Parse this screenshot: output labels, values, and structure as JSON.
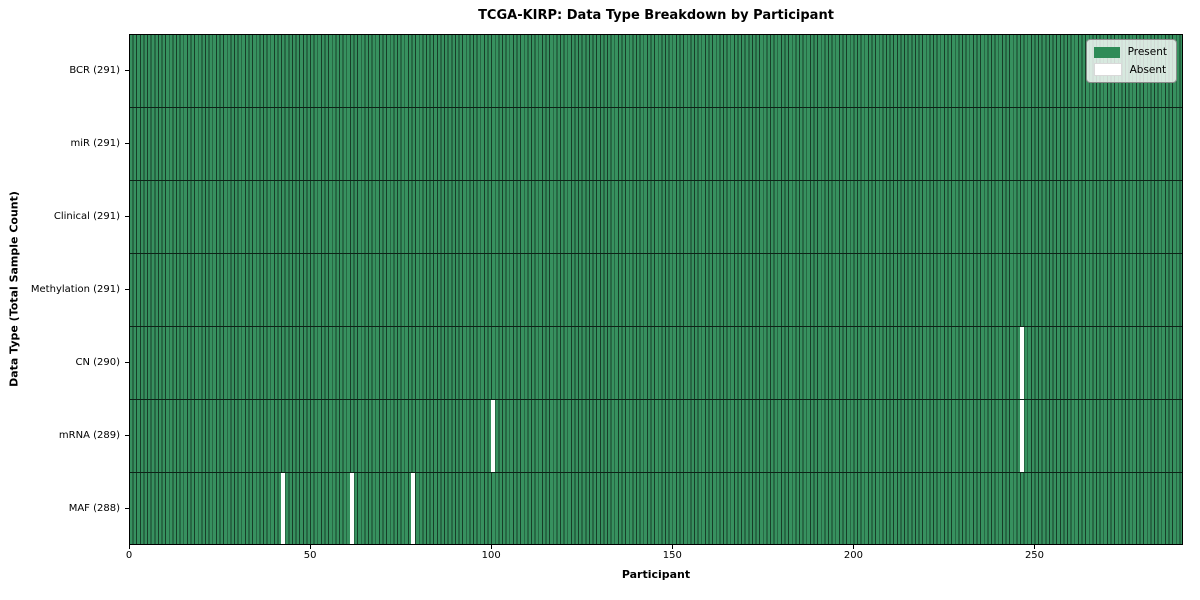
{
  "title": "TCGA-KIRP: Data Type Breakdown by Participant",
  "axes": {
    "xlabel": "Participant",
    "ylabel": "Data Type (Total Sample Count)",
    "x_ticks": [
      0,
      50,
      100,
      150,
      200,
      250
    ],
    "x_max": 291
  },
  "legend": {
    "items": [
      {
        "name": "present",
        "label": "Present",
        "color": "#2e8b57"
      },
      {
        "name": "absent",
        "label": "Absent",
        "color": "#ffffff"
      }
    ]
  },
  "colors": {
    "present_fill": "#37915f",
    "present_swatch": "#2e8b57",
    "absent": "#ffffff",
    "cell_edge": "#173f29",
    "row_divider": "#0d2417",
    "axis": "#000000"
  },
  "chart_data": {
    "type": "heatmap",
    "title": "TCGA-KIRP: Data Type Breakdown by Participant",
    "xlabel": "Participant",
    "ylabel": "Data Type (Total Sample Count)",
    "x_range": [
      0,
      291
    ],
    "n_participants": 291,
    "grid": false,
    "legend_position": "upper right",
    "legend_entries": [
      "Present",
      "Absent"
    ],
    "rows": [
      {
        "label": "BCR (291)",
        "data_type": "BCR",
        "total_samples": 291,
        "absent_participant_indices": []
      },
      {
        "label": "miR (291)",
        "data_type": "miR",
        "total_samples": 291,
        "absent_participant_indices": []
      },
      {
        "label": "Clinical (291)",
        "data_type": "Clinical",
        "total_samples": 291,
        "absent_participant_indices": []
      },
      {
        "label": "Methylation (291)",
        "data_type": "Methylation",
        "total_samples": 291,
        "absent_participant_indices": []
      },
      {
        "label": "CN (290)",
        "data_type": "CN",
        "total_samples": 290,
        "absent_participant_indices": [
          246
        ]
      },
      {
        "label": "mRNA (289)",
        "data_type": "mRNA",
        "total_samples": 289,
        "absent_participant_indices": [
          100,
          246
        ]
      },
      {
        "label": "MAF (288)",
        "data_type": "MAF",
        "total_samples": 288,
        "absent_participant_indices": [
          42,
          61,
          78
        ]
      }
    ]
  }
}
